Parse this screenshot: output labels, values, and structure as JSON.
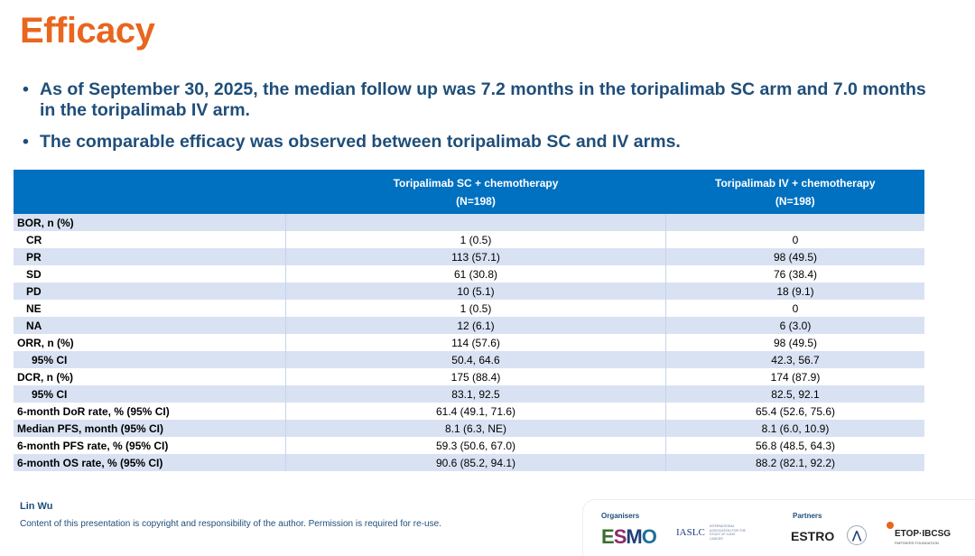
{
  "title": "Efficacy",
  "bullets": [
    "As of September 30, 2025, the median follow up was 7.2 months in the toripalimab SC arm and 7.0 months in the toripalimab IV arm.",
    "The comparable efficacy was observed between toripalimab SC and IV arms."
  ],
  "table": {
    "headers": [
      "",
      "Toripalimab SC + chemotherapy",
      "(N=198)",
      "Toripalimab IV + chemotherapy",
      "(N=198)"
    ],
    "rows": [
      {
        "label": "BOR, n (%)",
        "sc": "",
        "iv": ""
      },
      {
        "label": "CR",
        "sc": "1 (0.5)",
        "iv": "0"
      },
      {
        "label": "PR",
        "sc": "113 (57.1)",
        "iv": "98 (49.5)"
      },
      {
        "label": "SD",
        "sc": "61 (30.8)",
        "iv": "76 (38.4)"
      },
      {
        "label": "PD",
        "sc": "10 (5.1)",
        "iv": "18 (9.1)"
      },
      {
        "label": "NE",
        "sc": "1 (0.5)",
        "iv": "0"
      },
      {
        "label": "NA",
        "sc": "12 (6.1)",
        "iv": "6 (3.0)"
      },
      {
        "label": "ORR, n (%)",
        "sc": "114 (57.6)",
        "iv": "98 (49.5)"
      },
      {
        "label": "95% CI",
        "sc": "50.4, 64.6",
        "iv": "42.3, 56.7"
      },
      {
        "label": "DCR, n (%)",
        "sc": "175 (88.4)",
        "iv": "174 (87.9)"
      },
      {
        "label": "95% CI",
        "sc": "83.1, 92.5",
        "iv": "82.5, 92.1"
      },
      {
        "label": "6-month DoR rate, % (95% CI)",
        "sc": "61.4 (49.1, 71.6)",
        "iv": "65.4 (52.6, 75.6)"
      },
      {
        "label": "Median PFS, month (95% CI)",
        "sc": "8.1 (6.3, NE)",
        "iv": "8.1 (6.0, 10.9)"
      },
      {
        "label": "6-month PFS rate, % (95% CI)",
        "sc": "59.3 (50.6, 67.0)",
        "iv": "56.8 (48.5, 64.3)"
      },
      {
        "label": "6-month OS rate, % (95% CI)",
        "sc": "90.6 (85.2, 94.1)",
        "iv": "88.2 (82.1, 92.2)"
      }
    ]
  },
  "footer": {
    "author": "Lin Wu",
    "copyright": "Content of this presentation is copyright and responsibility of the author. Permission is required for re-use.",
    "organisers": "Organisers",
    "partners": "Partners",
    "logos": [
      "ESMO",
      "IASLC",
      "ESTRO",
      "ETOP·IBCSG"
    ],
    "iaslc_sub": "INTERNATIONAL ASSOCIATION FOR THE STUDY OF LUNG CANCER",
    "etop_sub": "PARTNERS FOUNDATION"
  },
  "colors": {
    "title": "#e8661e",
    "text": "#1f4e79",
    "header": "#0070c0",
    "stripe": "#d9e2f3"
  }
}
